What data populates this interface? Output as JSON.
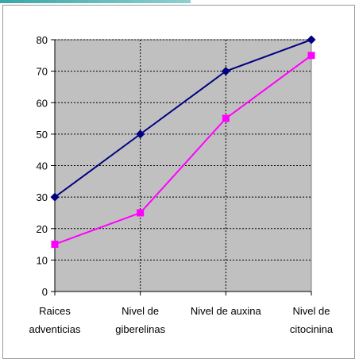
{
  "chart_data": {
    "type": "line",
    "categories": [
      [
        "Raices",
        "adventicias"
      ],
      [
        "Nivel de",
        "giberelinas"
      ],
      [
        "Nivel de auxina"
      ],
      [
        "Nivel de",
        "citocinina"
      ]
    ],
    "series": [
      {
        "values": [
          30,
          50,
          70,
          80
        ],
        "color": "#000080",
        "marker": "diamond"
      },
      {
        "values": [
          15,
          25,
          55,
          75
        ],
        "color": "#ff00ff",
        "marker": "square"
      }
    ],
    "ylim": [
      0,
      80
    ],
    "yticks": [
      0,
      10,
      20,
      30,
      40,
      50,
      60,
      70,
      80
    ],
    "grid": true,
    "plot_background": "#c0c0c0"
  }
}
